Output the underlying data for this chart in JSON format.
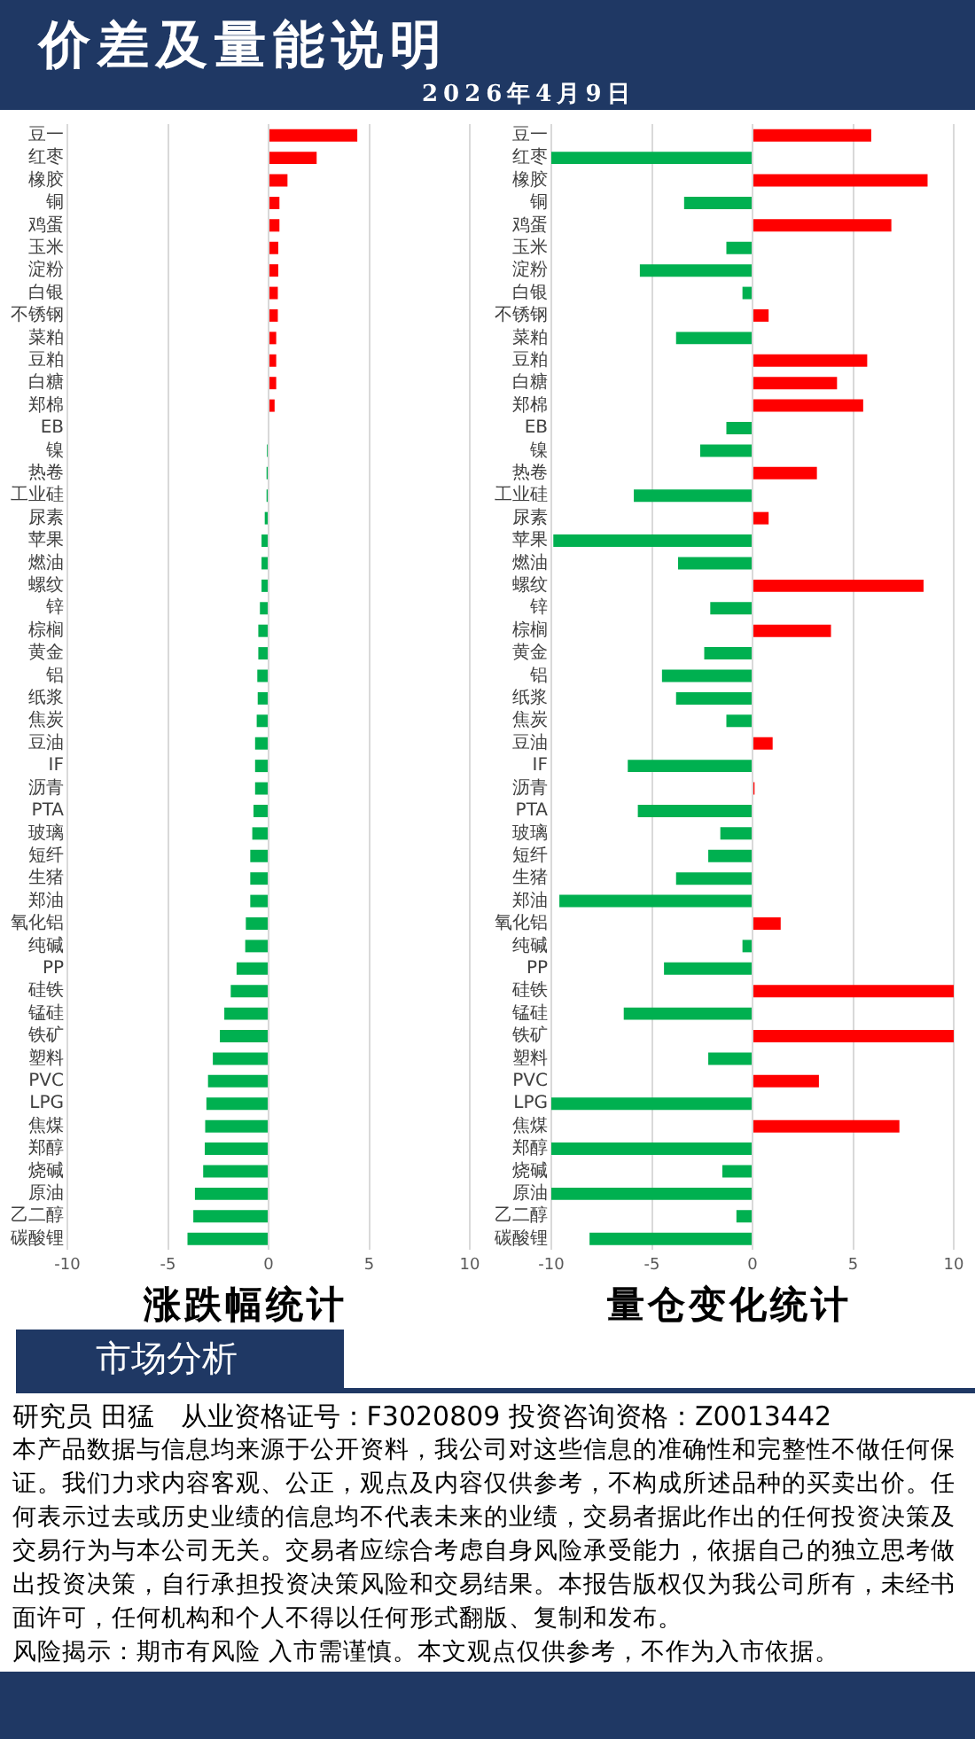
{
  "chart_data": [
    {
      "type": "other",
      "title": "价差及量能说明",
      "subtitle": "2026年4月9日"
    },
    {
      "type": "bar",
      "orientation": "horizontal",
      "title": "涨跌幅统计",
      "categories": [
        "豆一",
        "红枣",
        "橡胶",
        "铜",
        "鸡蛋",
        "玉米",
        "淀粉",
        "白银",
        "不锈钢",
        "菜粕",
        "豆粕",
        "白糖",
        "郑棉",
        "EB",
        "镍",
        "热卷",
        "工业硅",
        "尿素",
        "苹果",
        "燃油",
        "螺纹",
        "锌",
        "棕榈",
        "黄金",
        "铝",
        "纸浆",
        "焦炭",
        "豆油",
        "IF",
        "沥青",
        "PTA",
        "玻璃",
        "短纤",
        "生猪",
        "郑油",
        "氧化铝",
        "纯碱",
        "PP",
        "硅铁",
        "锰硅",
        "铁矿",
        "塑料",
        "PVC",
        "LPG",
        "焦煤",
        "郑醇",
        "烧碱",
        "原油",
        "乙二醇",
        "碳酸锂"
      ],
      "values": [
        4.41,
        2.39,
        0.94,
        0.54,
        0.54,
        0.48,
        0.48,
        0.46,
        0.46,
        0.38,
        0.38,
        0.38,
        0.3,
        0,
        -0.08,
        -0.1,
        -0.1,
        -0.19,
        -0.35,
        -0.35,
        -0.35,
        -0.43,
        -0.51,
        -0.51,
        -0.56,
        -0.54,
        -0.59,
        -0.67,
        -0.67,
        -0.67,
        -0.75,
        -0.81,
        -0.91,
        -0.91,
        -0.91,
        -1.13,
        -1.16,
        -1.59,
        -1.88,
        -2.2,
        -2.42,
        -2.77,
        -3.01,
        -3.09,
        -3.15,
        -3.17,
        -3.25,
        -3.66,
        -3.74,
        -4.03
      ],
      "colors": [
        "#ff0000",
        "#ff0000",
        "#ff0000",
        "#ff0000",
        "#ff0000",
        "#ff0000",
        "#ff0000",
        "#ff0000",
        "#ff0000",
        "#ff0000",
        "#ff0000",
        "#ff0000",
        "#ff0000",
        "#00b050",
        "#00b050",
        "#00b050",
        "#00b050",
        "#00b050",
        "#00b050",
        "#00b050",
        "#00b050",
        "#00b050",
        "#00b050",
        "#00b050",
        "#00b050",
        "#00b050",
        "#00b050",
        "#00b050",
        "#00b050",
        "#00b050",
        "#00b050",
        "#00b050",
        "#00b050",
        "#00b050",
        "#00b050",
        "#00b050",
        "#00b050",
        "#00b050",
        "#00b050",
        "#00b050",
        "#00b050",
        "#00b050",
        "#00b050",
        "#00b050",
        "#00b050",
        "#00b050",
        "#00b050",
        "#00b050",
        "#00b050",
        "#00b050"
      ],
      "xlim": [
        -10,
        10
      ],
      "xticks": [
        -10,
        -5,
        0,
        5,
        10
      ],
      "grid": "x",
      "legend": false
    },
    {
      "type": "bar",
      "orientation": "horizontal",
      "title": "量仓变化统计",
      "categories": [
        "豆一",
        "红枣",
        "橡胶",
        "铜",
        "鸡蛋",
        "玉米",
        "淀粉",
        "白银",
        "不锈钢",
        "菜粕",
        "豆粕",
        "白糖",
        "郑棉",
        "EB",
        "镍",
        "热卷",
        "工业硅",
        "尿素",
        "苹果",
        "燃油",
        "螺纹",
        "锌",
        "棕榈",
        "黄金",
        "铝",
        "纸浆",
        "焦炭",
        "豆油",
        "IF",
        "沥青",
        "PTA",
        "玻璃",
        "短纤",
        "生猪",
        "郑油",
        "氧化铝",
        "纯碱",
        "PP",
        "硅铁",
        "锰硅",
        "铁矿",
        "塑料",
        "PVC",
        "LPG",
        "焦煤",
        "郑醇",
        "烧碱",
        "原油",
        "乙二醇",
        "碳酸锂"
      ],
      "values": [
        5.9,
        -10,
        8.7,
        -3.4,
        6.9,
        -1.3,
        -5.6,
        -0.5,
        0.8,
        -3.8,
        5.7,
        4.2,
        5.5,
        -1.3,
        -2.6,
        3.2,
        -5.9,
        0.8,
        -9.9,
        -3.7,
        8.5,
        -2.1,
        3.9,
        -2.4,
        -4.5,
        -3.8,
        -1.3,
        1,
        -6.2,
        0.1,
        -5.7,
        -1.6,
        -2.2,
        -3.8,
        -9.6,
        1.4,
        -0.5,
        -4.4,
        10,
        -6.4,
        10,
        -2.2,
        3.3,
        -10,
        7.3,
        -10,
        -1.5,
        -10,
        -0.8,
        -8.1
      ],
      "colors": [
        "#ff0000",
        "#00b050",
        "#ff0000",
        "#00b050",
        "#ff0000",
        "#00b050",
        "#00b050",
        "#00b050",
        "#ff0000",
        "#00b050",
        "#ff0000",
        "#ff0000",
        "#ff0000",
        "#00b050",
        "#00b050",
        "#ff0000",
        "#00b050",
        "#ff0000",
        "#00b050",
        "#00b050",
        "#ff0000",
        "#00b050",
        "#ff0000",
        "#00b050",
        "#00b050",
        "#00b050",
        "#00b050",
        "#ff0000",
        "#00b050",
        "#ff0000",
        "#00b050",
        "#00b050",
        "#00b050",
        "#00b050",
        "#00b050",
        "#ff0000",
        "#00b050",
        "#00b050",
        "#ff0000",
        "#00b050",
        "#ff0000",
        "#00b050",
        "#ff0000",
        "#00b050",
        "#ff0000",
        "#00b050",
        "#00b050",
        "#00b050",
        "#00b050",
        "#00b050"
      ],
      "xlim": [
        -10,
        10
      ],
      "xticks": [
        -10,
        -5,
        0,
        5,
        10
      ],
      "grid": "x",
      "legend": false
    },
    {
      "type": "other",
      "title": "市场分析",
      "annotations": [
        "研究员 田猛　从业资格证号：F3020809 投资咨询资格：Z0013442",
        "本产品数据与信息均来源于公开资料，我公司对这些信息的准确性和完整性不做任何保证。我们力求内容客观、公正，观点及内容仅供参考，不构成所述品种的买卖出价。任何表示过去或历史业绩的信息均不代表未来的业绩，交易者据此作出的任何投资决策及交易行为与本公司无关。交易者应综合考虑自身风险承受能力，依据自己的独立思考做出投资决策，自行承担投资决策风险和交易结果。本报告版权仅为我公司所有，未经书面许可，任何机构和个人不得以任何形式翻版、复制和发布。",
        "风险揭示：期市有风险 入市需谨慎。本文观点仅供参考，不作为入市依据。"
      ]
    }
  ]
}
